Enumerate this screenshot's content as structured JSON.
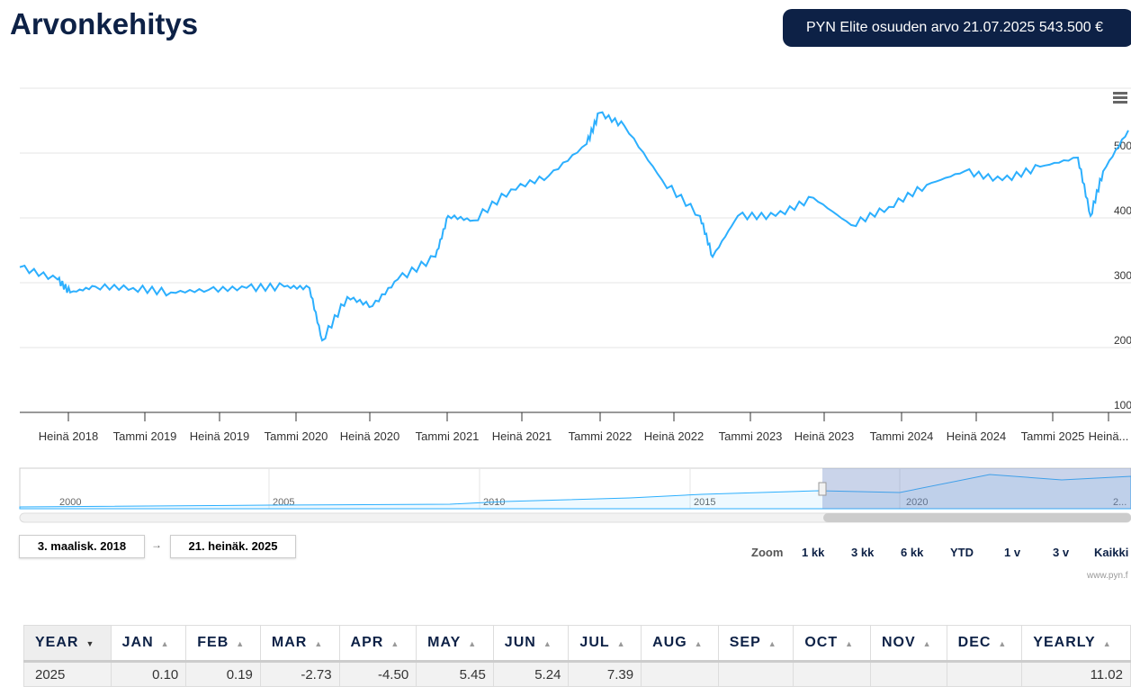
{
  "header": {
    "title": "Arvonkehitys",
    "badge": "PYN Elite osuuden arvo 21.07.2025 543.500 €"
  },
  "chart_data": {
    "type": "line",
    "yaxis": {
      "ticks": [
        "100",
        "200",
        "300",
        "400",
        "500"
      ],
      "range": [
        100,
        600
      ]
    },
    "xaxis": {
      "ticks": [
        "Heinä 2018",
        "Tammi 2019",
        "Heinä 2019",
        "Tammi 2020",
        "Heinä 2020",
        "Tammi 2021",
        "Heinä 2021",
        "Tammi 2022",
        "Heinä 2022",
        "Tammi 2023",
        "Heinä 2023",
        "Tammi 2024",
        "Heinä 2024",
        "Tammi 2025",
        "Heinä..."
      ]
    },
    "grid": true,
    "color": "#2caffe",
    "series": [
      {
        "x": [
          "2018-03",
          "2018-06",
          "2018-07",
          "2018-09",
          "2018-12",
          "2019-03",
          "2019-06",
          "2019-09",
          "2019-12",
          "2020-02",
          "2020-03",
          "2020-05",
          "2020-07",
          "2020-09",
          "2020-12",
          "2021-01",
          "2021-03",
          "2021-06",
          "2021-09",
          "2021-12",
          "2022-01",
          "2022-03",
          "2022-06",
          "2022-09",
          "2022-10",
          "2022-12",
          "2023-03",
          "2023-06",
          "2023-09",
          "2023-12",
          "2024-03",
          "2024-06",
          "2024-09",
          "2024-12",
          "2025-03",
          "2025-04",
          "2025-05",
          "2025-07"
        ],
        "y": [
          324,
          305,
          285,
          294,
          292,
          285,
          289,
          292,
          294,
          292,
          211,
          278,
          264,
          305,
          340,
          403,
          396,
          444,
          465,
          514,
          562,
          542,
          458,
          403,
          340,
          403,
          403,
          431,
          389,
          417,
          451,
          472,
          458,
          479,
          493,
          403,
          472,
          535
        ]
      }
    ],
    "navigator": {
      "ticks": [
        "2000",
        "2005",
        "2010",
        "2015",
        "2020",
        "2..."
      ]
    }
  },
  "range": {
    "from": "3. maalisk. 2018",
    "to": "21. heinäk. 2025",
    "arrow": "→"
  },
  "zoom": {
    "label": "Zoom",
    "buttons": [
      "1 kk",
      "3 kk",
      "6 kk",
      "YTD",
      "1 v",
      "3 v",
      "Kaikki"
    ]
  },
  "credit": "www.pyn.f",
  "table": {
    "headers": [
      "YEAR",
      "JAN",
      "FEB",
      "MAR",
      "APR",
      "MAY",
      "JUN",
      "JUL",
      "AUG",
      "SEP",
      "OCT",
      "NOV",
      "DEC",
      "YEARLY"
    ],
    "rows": [
      [
        "2025",
        "0.10",
        "0.19",
        "-2.73",
        "-4.50",
        "5.45",
        "5.24",
        "7.39",
        "",
        "",
        "",
        "",
        "",
        "11.02"
      ]
    ]
  }
}
